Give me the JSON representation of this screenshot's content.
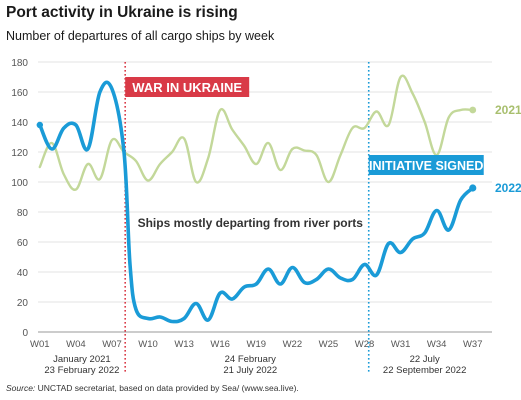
{
  "title": "Port activity in Ukraine is rising",
  "subtitle": "Number of departures of all cargo ships by week",
  "source_label": "Source:",
  "source_text": " UNCTAD secretariat, based on data provided by Sea/ (www.sea.live).",
  "colors": {
    "series_2022": "#1a9bd7",
    "series_2021": "#c3d89a",
    "label_2021": "#a8bf6e",
    "war_marker": "#d93a47",
    "initiative_marker": "#1a9bd7",
    "grid": "#e3e3e3",
    "axis_text": "#555555"
  },
  "chart_data": {
    "type": "line",
    "title": "Port activity in Ukraine is rising",
    "subtitle": "Number of departures of all cargo ships by week",
    "ylim": [
      0,
      180
    ],
    "yticks": [
      0,
      20,
      40,
      60,
      80,
      100,
      120,
      140,
      160,
      180
    ],
    "x_range": [
      1,
      38
    ],
    "xticks": [
      {
        "week": 1,
        "label": "W01"
      },
      {
        "week": 4,
        "label": "W04"
      },
      {
        "week": 7,
        "label": "W07"
      },
      {
        "week": 10,
        "label": "W10"
      },
      {
        "week": 13,
        "label": "W13"
      },
      {
        "week": 16,
        "label": "W16"
      },
      {
        "week": 19,
        "label": "W19"
      },
      {
        "week": 22,
        "label": "W22"
      },
      {
        "week": 25,
        "label": "W25"
      },
      {
        "week": 28,
        "label": "W28"
      },
      {
        "week": 31,
        "label": "W31"
      },
      {
        "week": 34,
        "label": "W34"
      },
      {
        "week": 37,
        "label": "W37"
      }
    ],
    "period_labels": [
      {
        "week": 4.5,
        "line1": "January 2021",
        "line2": "23 February 2022"
      },
      {
        "week": 18.5,
        "line1": "24 February",
        "line2": "21 July 2022"
      },
      {
        "week": 33,
        "line1": "22 July",
        "line2": "22 September 2022"
      }
    ],
    "series": [
      {
        "name": "2021",
        "key": "s2021",
        "points": [
          [
            1,
            110
          ],
          [
            2,
            126
          ],
          [
            3,
            105
          ],
          [
            4,
            95
          ],
          [
            5,
            112
          ],
          [
            6,
            102
          ],
          [
            7,
            128
          ],
          [
            8,
            120
          ],
          [
            9,
            114
          ],
          [
            10,
            101
          ],
          [
            11,
            112
          ],
          [
            12,
            120
          ],
          [
            13,
            129
          ],
          [
            14,
            100
          ],
          [
            15,
            116
          ],
          [
            16,
            148
          ],
          [
            17,
            135
          ],
          [
            18,
            124
          ],
          [
            19,
            112
          ],
          [
            20,
            126
          ],
          [
            21,
            108
          ],
          [
            22,
            122
          ],
          [
            23,
            121
          ],
          [
            24,
            118
          ],
          [
            25,
            100
          ],
          [
            26,
            118
          ],
          [
            27,
            136
          ],
          [
            28,
            136
          ],
          [
            29,
            147
          ],
          [
            30,
            138
          ],
          [
            31,
            170
          ],
          [
            32,
            159
          ],
          [
            33,
            140
          ],
          [
            34,
            118
          ],
          [
            35,
            143
          ],
          [
            36,
            148
          ],
          [
            37,
            148
          ]
        ]
      },
      {
        "name": "2022",
        "key": "s2022",
        "points": [
          [
            1,
            138
          ],
          [
            2,
            122
          ],
          [
            3,
            136
          ],
          [
            4,
            138
          ],
          [
            5,
            122
          ],
          [
            6,
            160
          ],
          [
            7,
            162
          ],
          [
            8,
            120
          ],
          [
            8.5,
            45
          ],
          [
            9,
            15
          ],
          [
            10,
            9
          ],
          [
            11,
            10
          ],
          [
            12,
            7
          ],
          [
            13,
            9
          ],
          [
            14,
            19
          ],
          [
            15,
            8
          ],
          [
            16,
            26
          ],
          [
            17,
            22
          ],
          [
            18,
            30
          ],
          [
            19,
            32
          ],
          [
            20,
            42
          ],
          [
            21,
            32
          ],
          [
            22,
            43
          ],
          [
            23,
            33
          ],
          [
            24,
            35
          ],
          [
            25,
            42
          ],
          [
            26,
            36
          ],
          [
            27,
            35
          ],
          [
            28,
            45
          ],
          [
            29,
            38
          ],
          [
            30,
            59
          ],
          [
            31,
            53
          ],
          [
            32,
            62
          ],
          [
            33,
            66
          ],
          [
            34,
            81
          ],
          [
            35,
            68
          ],
          [
            36,
            88
          ],
          [
            37,
            96
          ]
        ]
      }
    ],
    "series_labels": {
      "s2021": "2021",
      "s2022": "2022"
    },
    "annotations": {
      "war": {
        "week": 8.1,
        "label": "WAR IN UKRAINE"
      },
      "initiative": {
        "week": 28.35,
        "label": "INITIATIVE SIGNED"
      },
      "note": "Ships mostly departing from river ports"
    }
  }
}
